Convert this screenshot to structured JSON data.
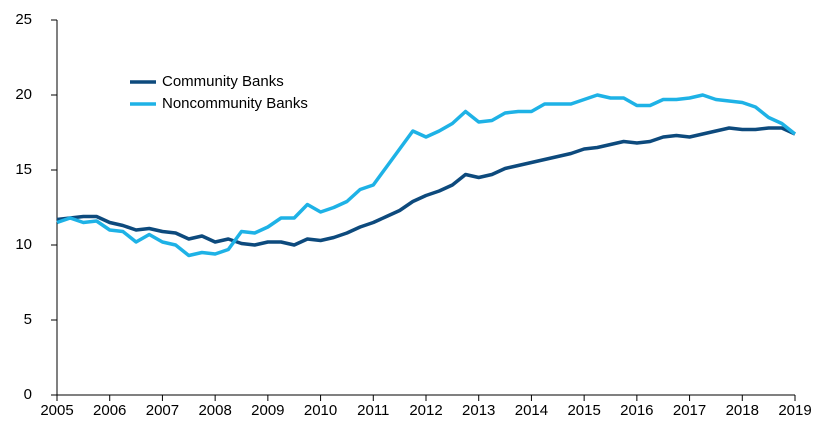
{
  "chart_data": {
    "type": "line",
    "x": [
      2005,
      2005.25,
      2005.5,
      2005.75,
      2006,
      2006.25,
      2006.5,
      2006.75,
      2007,
      2007.25,
      2007.5,
      2007.75,
      2008,
      2008.25,
      2008.5,
      2008.75,
      2009,
      2009.25,
      2009.5,
      2009.75,
      2010,
      2010.25,
      2010.5,
      2010.75,
      2011,
      2011.25,
      2011.5,
      2011.75,
      2012,
      2012.25,
      2012.5,
      2012.75,
      2013,
      2013.25,
      2013.5,
      2013.75,
      2014,
      2014.25,
      2014.5,
      2014.75,
      2015,
      2015.25,
      2015.5,
      2015.75,
      2016,
      2016.25,
      2016.5,
      2016.75,
      2017,
      2017.25,
      2017.5,
      2017.75,
      2018,
      2018.25,
      2018.5,
      2018.75,
      2019
    ],
    "series": [
      {
        "name": "Community Banks",
        "color": "#0d4a7d",
        "values": [
          11.7,
          11.8,
          11.9,
          11.9,
          11.5,
          11.3,
          11.0,
          11.1,
          10.9,
          10.8,
          10.4,
          10.6,
          10.2,
          10.4,
          10.1,
          10.0,
          10.2,
          10.2,
          10.0,
          10.4,
          10.3,
          10.5,
          10.8,
          11.2,
          11.5,
          11.9,
          12.3,
          12.9,
          13.3,
          13.6,
          14.0,
          14.7,
          14.5,
          14.7,
          15.1,
          15.3,
          15.5,
          15.7,
          15.9,
          16.1,
          16.4,
          16.5,
          16.7,
          16.9,
          16.8,
          16.9,
          17.2,
          17.3,
          17.2,
          17.4,
          17.6,
          17.8,
          17.7,
          17.7,
          17.8,
          17.8,
          17.4
        ]
      },
      {
        "name": "Noncommunity Banks",
        "color": "#1eb2e6",
        "values": [
          11.5,
          11.8,
          11.5,
          11.6,
          11.0,
          10.9,
          10.2,
          10.7,
          10.2,
          10.0,
          9.3,
          9.5,
          9.4,
          9.7,
          10.9,
          10.8,
          11.2,
          11.8,
          11.8,
          12.7,
          12.2,
          12.5,
          12.9,
          13.7,
          14.0,
          15.2,
          16.4,
          17.6,
          17.2,
          17.6,
          18.1,
          18.9,
          18.2,
          18.3,
          18.8,
          18.9,
          18.9,
          19.4,
          19.4,
          19.4,
          19.7,
          20.0,
          19.8,
          19.8,
          19.3,
          19.3,
          19.7,
          19.7,
          19.8,
          20.0,
          19.7,
          19.6,
          19.5,
          19.2,
          18.5,
          18.1,
          17.4
        ]
      }
    ],
    "xlim": [
      2005,
      2019
    ],
    "xticks": [
      2005,
      2006,
      2007,
      2008,
      2009,
      2010,
      2011,
      2012,
      2013,
      2014,
      2015,
      2016,
      2017,
      2018,
      2019
    ],
    "ylim": [
      0,
      25
    ],
    "yticks": [
      0,
      5,
      10,
      15,
      20,
      25
    ],
    "legend": "upper-left"
  }
}
